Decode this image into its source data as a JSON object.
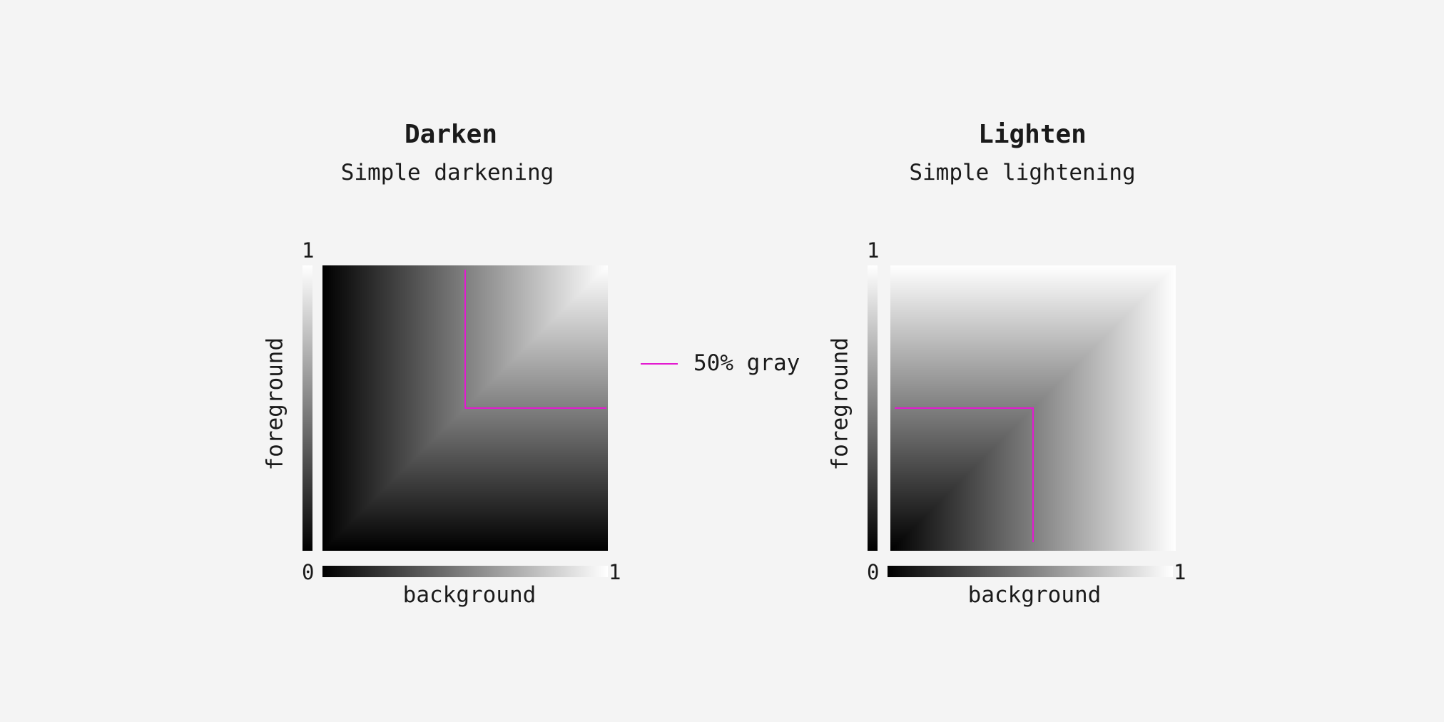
{
  "legend": {
    "label": "50% gray",
    "color": "#e31ad0"
  },
  "panels": [
    {
      "mode": "darken",
      "title": "Darken",
      "subtitle": "Simple darkening",
      "ylabel": "foreground",
      "xlabel": "background",
      "tick_min": "0",
      "tick_max": "1",
      "reference_value": 0.5
    },
    {
      "mode": "lighten",
      "title": "Lighten",
      "subtitle": "Simple lightening",
      "ylabel": "foreground",
      "xlabel": "background",
      "tick_min": "0",
      "tick_max": "1",
      "reference_value": 0.5
    }
  ]
}
